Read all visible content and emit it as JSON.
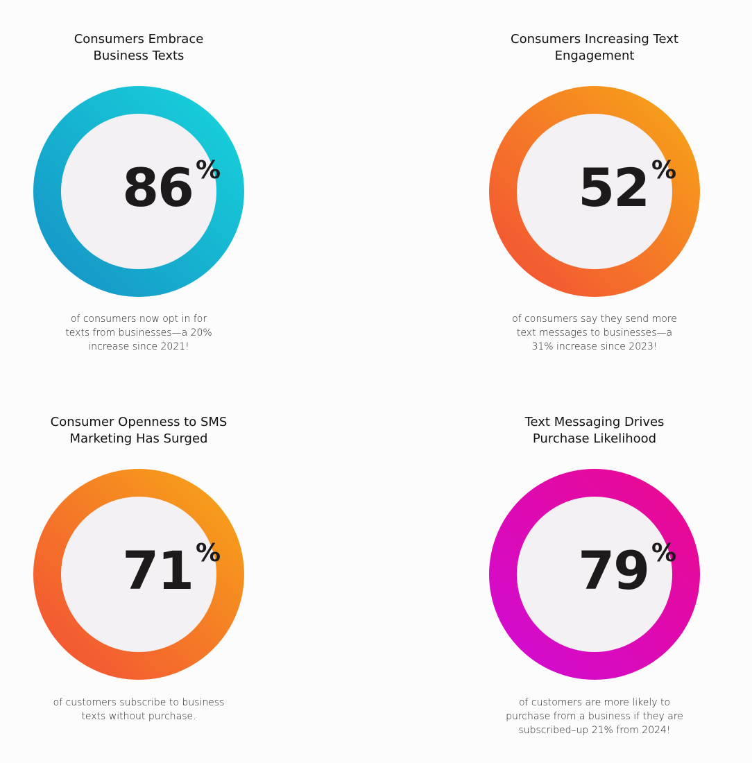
{
  "stats": [
    {
      "title": "Consumers Embrace\nBusiness Texts",
      "value": "86",
      "unit": "%",
      "description": "of consumers now opt in for\ntexts from businesses—a 20%\nincrease since 2021!",
      "gradient": [
        "#17d6dc",
        "#1690c5"
      ]
    },
    {
      "title": "Consumers Increasing Text\nEngagement",
      "value": "52",
      "unit": "%",
      "description": "of consumers say they send more\ntext messages to businesses—a\n31% increase since 2023!",
      "gradient": [
        "#f7a916",
        "#f24c36"
      ]
    },
    {
      "title": "Consumer Openness to SMS\nMarketing Has Surged",
      "value": "71",
      "unit": "%",
      "description": "of customers subscribe to business\ntexts without purchase.",
      "gradient": [
        "#f7a916",
        "#f24c36"
      ]
    },
    {
      "title": "Text Messaging Drives\nPurchase Likelihood",
      "value": "79",
      "unit": "%",
      "description": "of customers are more likely to\npurchase from a business if they are\nsubscribed–up 21% from 2024!",
      "gradient": [
        "#ec0a8c",
        "#cf0bd6"
      ]
    }
  ]
}
